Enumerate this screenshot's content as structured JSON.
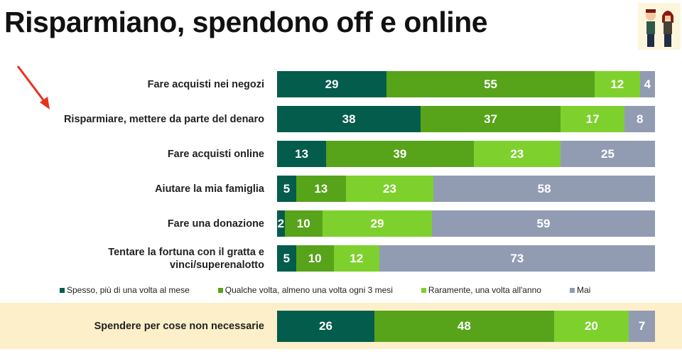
{
  "title": "Risparmiano, spendono off e online",
  "chart_data": {
    "type": "bar",
    "stacked": true,
    "orientation": "horizontal",
    "categories": [
      "Fare acquisti nei negozi",
      "Risparmiare, mettere da parte del denaro",
      "Fare acquisti online",
      "Aiutare la mia famiglia",
      "Fare una donazione",
      "Tentare la fortuna con il gratta e vinci/superenalotto",
      "Spendere per cose non necessarie"
    ],
    "series": [
      {
        "name": "Spesso, più di una volta al mese",
        "color": "#045c4c",
        "values": [
          29,
          38,
          13,
          5,
          2,
          5,
          26
        ]
      },
      {
        "name": "Qualche volta, almeno una volta ogni 3 mesi",
        "color": "#57a31a",
        "values": [
          55,
          37,
          39,
          13,
          10,
          10,
          48
        ]
      },
      {
        "name": "Raramente, una volta all'anno",
        "color": "#7ed12d",
        "values": [
          12,
          17,
          23,
          23,
          29,
          12,
          20
        ]
      },
      {
        "name": "Mai",
        "color": "#919cb3",
        "values": [
          4,
          8,
          25,
          58,
          59,
          73,
          7
        ]
      }
    ],
    "highlighted_category": "Spendere per cose non necessarie",
    "legend_position": "bottom",
    "grid": false
  }
}
